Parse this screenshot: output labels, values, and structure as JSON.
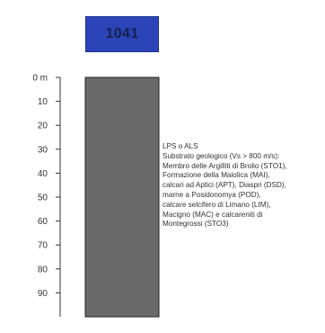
{
  "well_id": "1041",
  "colors": {
    "badge_bg": "#2b45b8",
    "badge_text": "#16204d",
    "column_fill": "#6a6a6a",
    "axis": "#333333"
  },
  "depth_axis": {
    "unit": "m",
    "min": 0,
    "max": 100,
    "labels": [
      "0 m",
      "10",
      "20",
      "30",
      "40",
      "50",
      "60",
      "70",
      "80",
      "90"
    ],
    "values": [
      0,
      10,
      20,
      30,
      40,
      50,
      60,
      70,
      80,
      90
    ]
  },
  "layers": [
    {
      "top": 0,
      "bottom": 100,
      "description_lines": [
        "LPS o ALS",
        "Substrato geologico (Vs > 800 m/s):",
        "Membro delle Argilliti di Brolio (STO1),",
        "Formazione della Maiolica (MAI),",
        "calcari ad Aptici (APT), Diaspri (DSD),",
        "marne a Posidonomya (POD),",
        "calcare selcifero di Limano (LIM),",
        "Macigno (MAC) e calcareniti di",
        "Montegrossi (STO3)"
      ]
    }
  ]
}
